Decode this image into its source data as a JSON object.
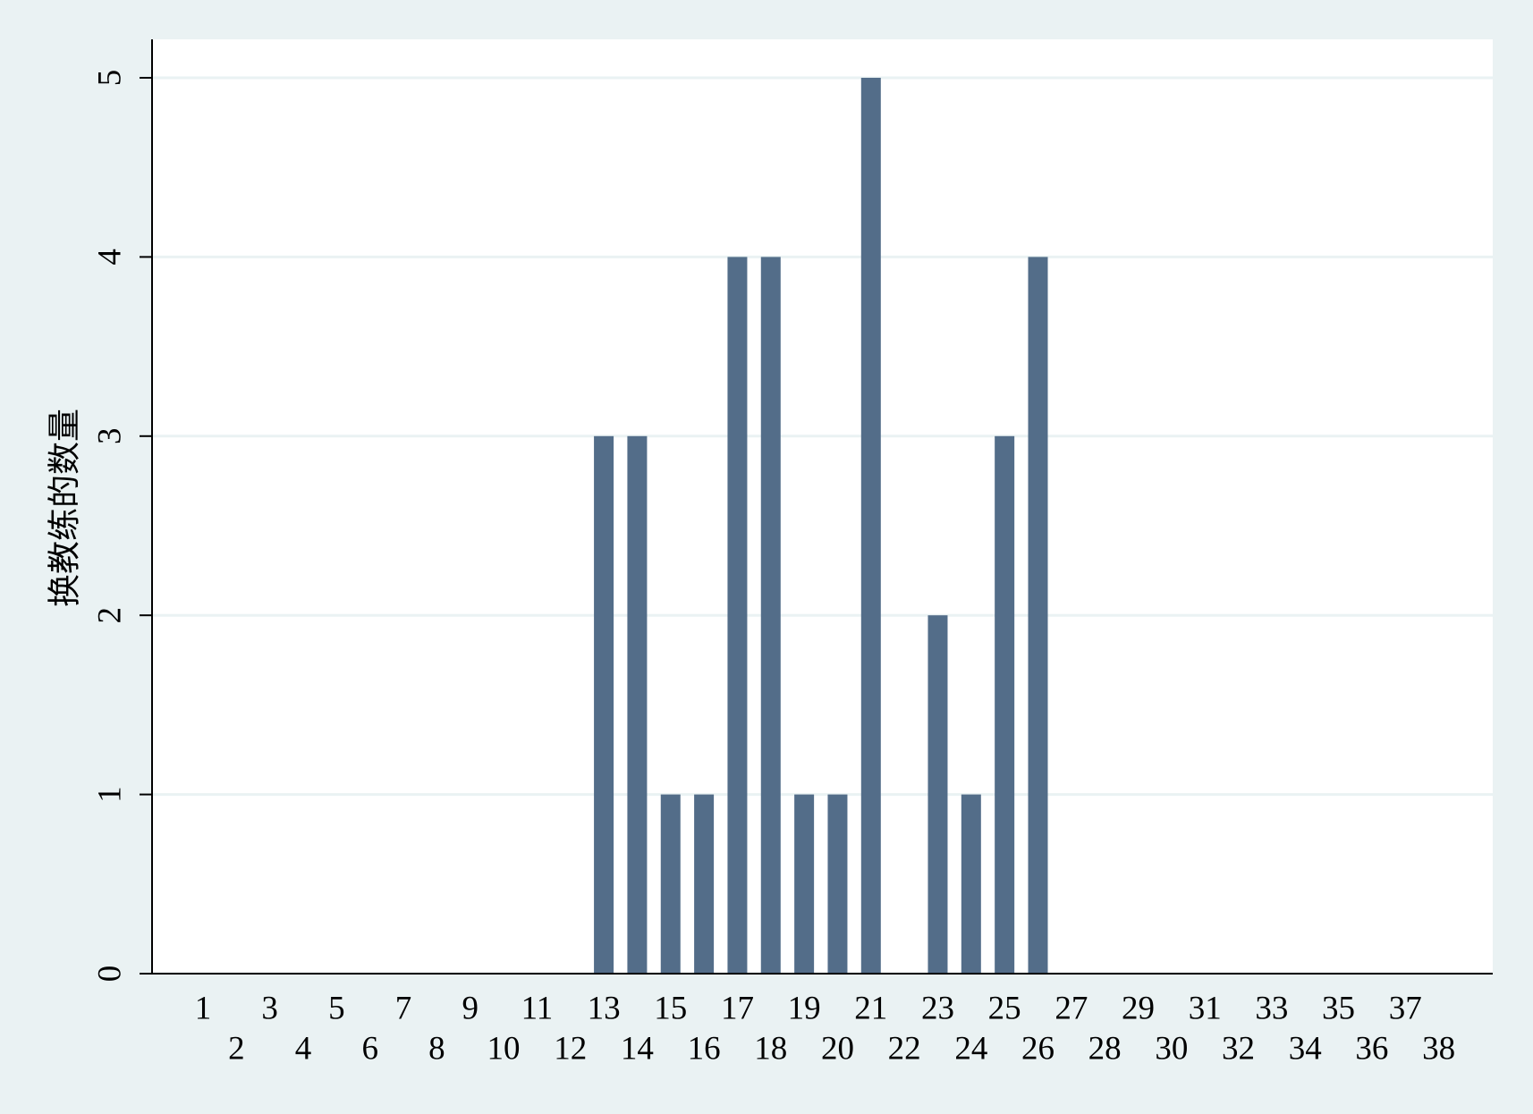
{
  "chart_data": {
    "type": "bar",
    "y_label": "换教练的数量",
    "categories": [
      "1",
      "2",
      "3",
      "4",
      "5",
      "6",
      "7",
      "8",
      "9",
      "10",
      "11",
      "12",
      "13",
      "14",
      "15",
      "16",
      "17",
      "18",
      "19",
      "20",
      "21",
      "22",
      "23",
      "24",
      "25",
      "26",
      "27",
      "28",
      "29",
      "30",
      "31",
      "32",
      "33",
      "34",
      "35",
      "36",
      "37",
      "38"
    ],
    "values": [
      0,
      0,
      0,
      0,
      0,
      0,
      0,
      0,
      0,
      0,
      0,
      0,
      3,
      3,
      1,
      1,
      4,
      4,
      1,
      1,
      5,
      0,
      2,
      1,
      3,
      4,
      0,
      0,
      0,
      0,
      0,
      0,
      0,
      0,
      0,
      0,
      0,
      0
    ],
    "color": "#536d89",
    "ylim": [
      0,
      5
    ],
    "yticks": [
      0,
      1,
      2,
      3,
      4,
      5
    ],
    "grid": true
  }
}
